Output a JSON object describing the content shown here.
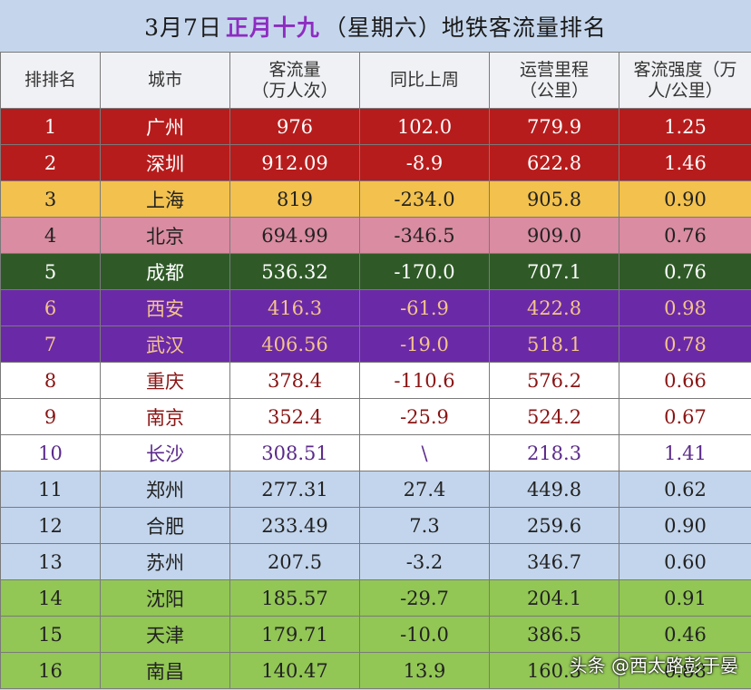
{
  "title": {
    "date": "3月7日",
    "lunar": "正月十九",
    "rest": "（星期六）地铁客流量排名"
  },
  "headers": [
    "排排名",
    "城市",
    "客流量（万人次）",
    "同比上周",
    "运营里程（公里）",
    "客流强度（万人/公里）"
  ],
  "header_display": [
    [
      "排排名"
    ],
    [
      "城市"
    ],
    [
      "客流量",
      "（万人次）"
    ],
    [
      "同比上周"
    ],
    [
      "运营里程",
      "（公里）"
    ],
    [
      "客流强度（万",
      "人/公里）"
    ]
  ],
  "rows": [
    {
      "rank": "1",
      "city": "广州",
      "flow": "976",
      "change": "102.0",
      "mileage": "779.9",
      "intensity": "1.25",
      "style": "red"
    },
    {
      "rank": "2",
      "city": "深圳",
      "flow": "912.09",
      "change": "-8.9",
      "mileage": "622.8",
      "intensity": "1.46",
      "style": "red"
    },
    {
      "rank": "3",
      "city": "上海",
      "flow": "819",
      "change": "-234.0",
      "mileage": "905.8",
      "intensity": "0.90",
      "style": "yellow"
    },
    {
      "rank": "4",
      "city": "北京",
      "flow": "694.99",
      "change": "-346.5",
      "mileage": "909.0",
      "intensity": "0.76",
      "style": "pink"
    },
    {
      "rank": "5",
      "city": "成都",
      "flow": "536.32",
      "change": "-170.0",
      "mileage": "707.1",
      "intensity": "0.76",
      "style": "green"
    },
    {
      "rank": "6",
      "city": "西安",
      "flow": "416.3",
      "change": "-61.9",
      "mileage": "422.8",
      "intensity": "0.98",
      "style": "purple"
    },
    {
      "rank": "7",
      "city": "武汉",
      "flow": "406.56",
      "change": "-19.0",
      "mileage": "518.1",
      "intensity": "0.78",
      "style": "purple"
    },
    {
      "rank": "8",
      "city": "重庆",
      "flow": "378.4",
      "change": "-110.6",
      "mileage": "576.2",
      "intensity": "0.66",
      "style": "white"
    },
    {
      "rank": "9",
      "city": "南京",
      "flow": "352.4",
      "change": "-25.9",
      "mileage": "524.2",
      "intensity": "0.67",
      "style": "white"
    },
    {
      "rank": "10",
      "city": "长沙",
      "flow": "308.51",
      "change": "\\",
      "mileage": "218.3",
      "intensity": "1.41",
      "style": "white2"
    },
    {
      "rank": "11",
      "city": "郑州",
      "flow": "277.31",
      "change": "27.4",
      "mileage": "449.8",
      "intensity": "0.62",
      "style": "blue"
    },
    {
      "rank": "12",
      "city": "合肥",
      "flow": "233.49",
      "change": "7.3",
      "mileage": "259.6",
      "intensity": "0.90",
      "style": "blue"
    },
    {
      "rank": "13",
      "city": "苏州",
      "flow": "207.5",
      "change": "-3.2",
      "mileage": "346.7",
      "intensity": "0.60",
      "style": "blue"
    },
    {
      "rank": "14",
      "city": "沈阳",
      "flow": "185.57",
      "change": "-29.7",
      "mileage": "204.1",
      "intensity": "0.91",
      "style": "lime"
    },
    {
      "rank": "15",
      "city": "天津",
      "flow": "179.71",
      "change": "-10.0",
      "mileage": "386.5",
      "intensity": "0.46",
      "style": "lime"
    },
    {
      "rank": "16",
      "city": "南昌",
      "flow": "140.47",
      "change": "13.9",
      "mileage": "160.3",
      "intensity": "0.88",
      "style": "lime"
    }
  ],
  "watermark": "头条 @西太路彭于晏"
}
